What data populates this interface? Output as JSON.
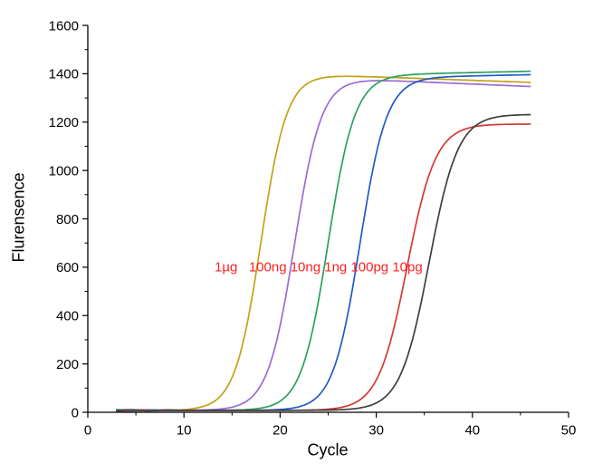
{
  "chart_data": {
    "type": "line",
    "title": "",
    "xlabel": "Cycle",
    "ylabel": "Flurensence",
    "xlim": [
      0,
      50
    ],
    "ylim": [
      0,
      1600
    ],
    "x_major_ticks": [
      0,
      10,
      20,
      30,
      40,
      50
    ],
    "x_minor_ticks": [
      5,
      15,
      25,
      35,
      45
    ],
    "y_major_ticks": [
      0,
      200,
      400,
      600,
      800,
      1000,
      1200,
      1400,
      1600
    ],
    "y_minor_ticks": [
      100,
      300,
      500,
      700,
      900,
      1100,
      1300,
      1500
    ],
    "grid": false,
    "legend_position": "none",
    "curve_x_range": [
      3,
      46
    ],
    "annotation": {
      "text": "1µg   100ng 10ng 1ng 100pg 10pg",
      "color": "#ff2222",
      "x_data": 13,
      "y_data": 600
    },
    "series": [
      {
        "name": "1µg",
        "color": "#c3a216",
        "baseline": 8,
        "plateau": 1398,
        "ct_midpoint": 18.0,
        "slope": 1.35,
        "plateau_drift_per_cycle": -1.4
      },
      {
        "name": "100ng",
        "color": "#9b6bd3",
        "baseline": 8,
        "plateau": 1382,
        "ct_midpoint": 21.5,
        "slope": 1.4,
        "plateau_drift_per_cycle": -1.7
      },
      {
        "name": "10ng",
        "color": "#2da05f",
        "baseline": 8,
        "plateau": 1395,
        "ct_midpoint": 25.0,
        "slope": 1.4,
        "plateau_drift_per_cycle": 0.9
      },
      {
        "name": "1ng",
        "color": "#2459c5",
        "baseline": 8,
        "plateau": 1385,
        "ct_midpoint": 28.3,
        "slope": 1.4,
        "plateau_drift_per_cycle": 0.8
      },
      {
        "name": "100pg",
        "color": "#d23a34",
        "baseline": 8,
        "plateau": 1192,
        "ct_midpoint": 33.2,
        "slope": 1.5,
        "plateau_drift_per_cycle": 0.0
      },
      {
        "name": "10pg",
        "color": "#3f3f3f",
        "baseline": 8,
        "plateau": 1232,
        "ct_midpoint": 35.5,
        "slope": 1.5,
        "plateau_drift_per_cycle": 0.0
      }
    ]
  }
}
